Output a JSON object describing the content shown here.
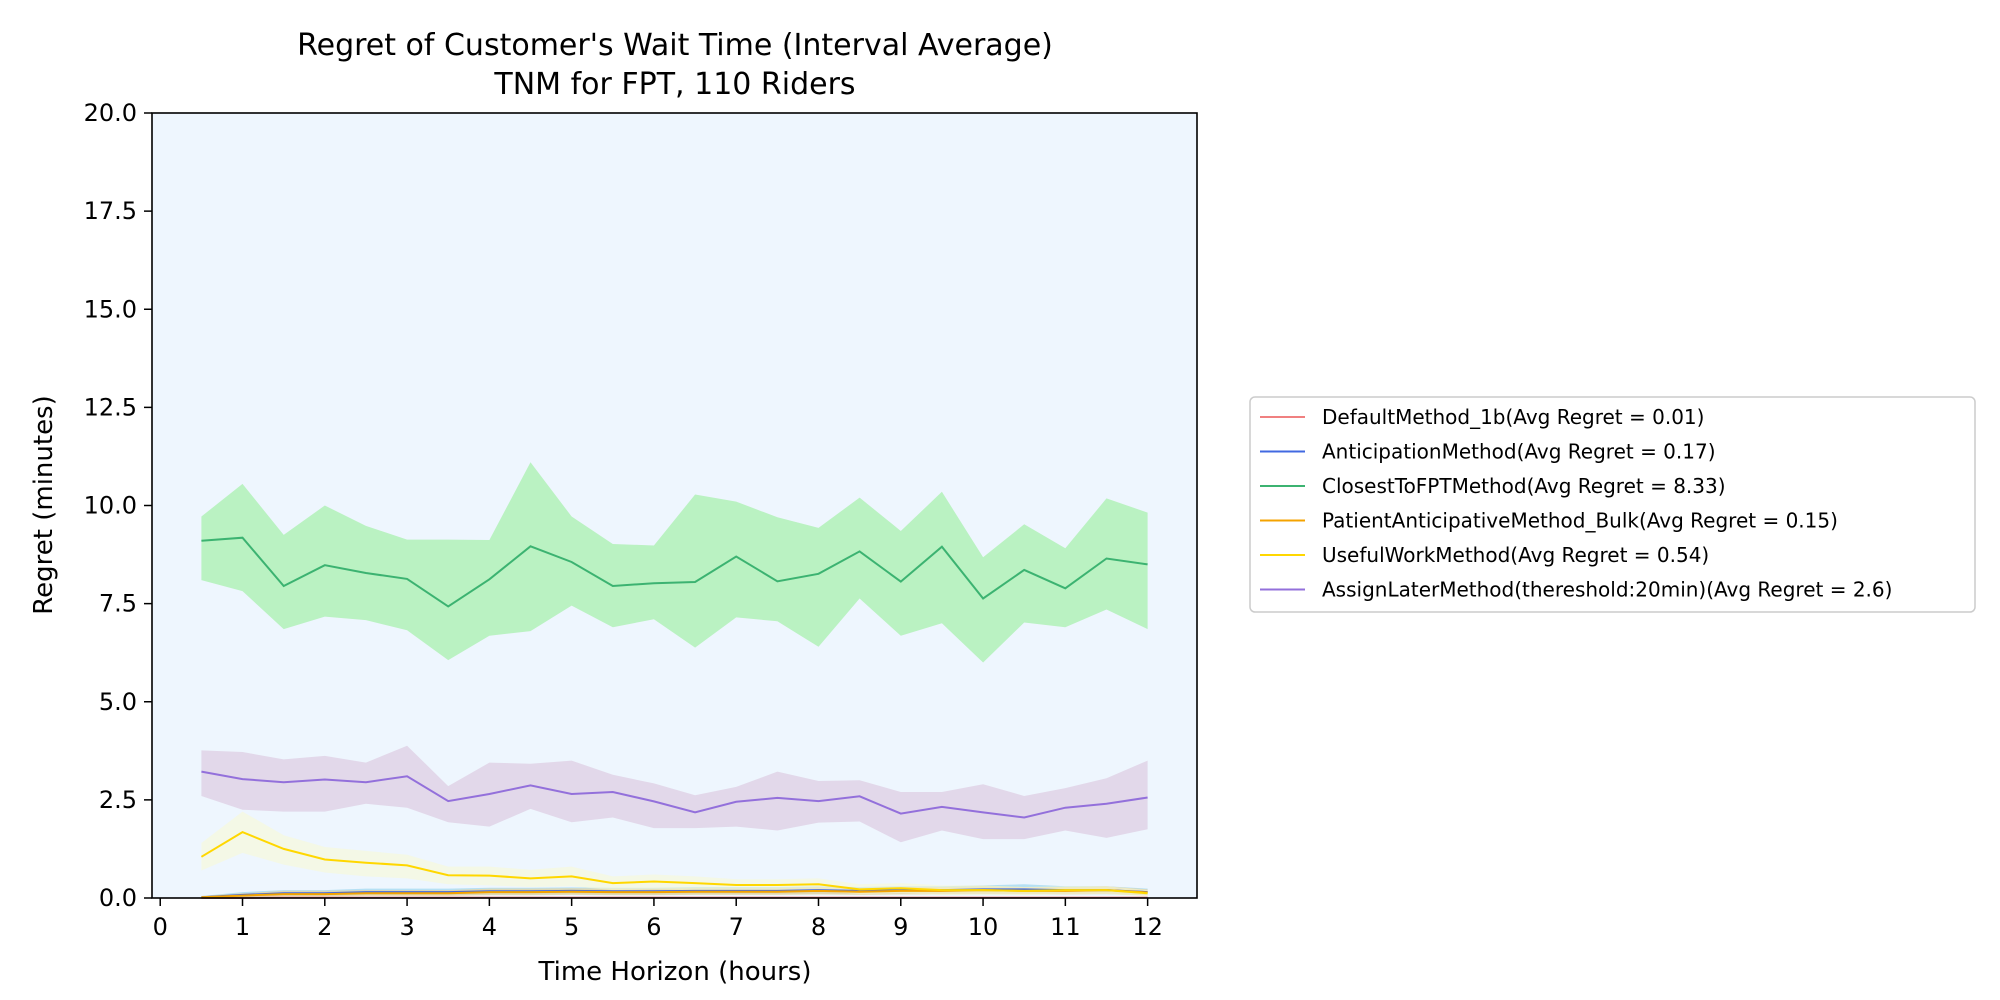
{
  "chart_data": {
    "type": "line",
    "title": "Regret of Customer's Wait Time (Interval Average)",
    "subtitle": "TNM for FPT, 110 Riders",
    "xlabel": "Time Horizon (hours)",
    "ylabel": "Regret (minutes)",
    "xlim": [
      -0.1,
      12.6
    ],
    "ylim": [
      0,
      20
    ],
    "xticks": [
      0,
      1,
      2,
      3,
      4,
      5,
      6,
      7,
      8,
      9,
      10,
      11,
      12
    ],
    "yticks": [
      "0.0",
      "2.5",
      "5.0",
      "7.5",
      "10.0",
      "12.5",
      "15.0",
      "17.5",
      "20.0"
    ],
    "plot_background": "#eef6fe",
    "grid": false,
    "legend_position": "outside-right",
    "x": [
      0.5,
      1,
      1.5,
      2,
      2.5,
      3,
      3.5,
      4,
      4.5,
      5,
      5.5,
      6,
      6.5,
      7,
      7.5,
      8,
      8.5,
      9,
      9.5,
      10,
      10.5,
      11,
      11.5,
      12
    ],
    "series": [
      {
        "name": "DefaultMethod_1b(Avg Regret = 0.01)",
        "color": "#f08080",
        "band_color": "#f4b6b6",
        "values": [
          0.0,
          0.0,
          0.01,
          0.01,
          0.01,
          0.01,
          0.01,
          0.01,
          0.01,
          0.01,
          0.01,
          0.01,
          0.01,
          0.01,
          0.01,
          0.01,
          0.01,
          0.01,
          0.01,
          0.01,
          0.01,
          0.01,
          0.01,
          0.01
        ],
        "lower": [
          0.0,
          0.0,
          0.0,
          0.0,
          0.0,
          0.0,
          0.0,
          0.0,
          0.0,
          0.0,
          0.0,
          0.0,
          0.0,
          0.0,
          0.0,
          0.0,
          0.0,
          0.0,
          0.0,
          0.0,
          0.0,
          0.0,
          0.0,
          0.0
        ],
        "upper": [
          0.02,
          0.03,
          0.03,
          0.03,
          0.03,
          0.03,
          0.03,
          0.03,
          0.03,
          0.03,
          0.03,
          0.03,
          0.03,
          0.03,
          0.03,
          0.03,
          0.03,
          0.03,
          0.03,
          0.03,
          0.03,
          0.03,
          0.03,
          0.03
        ]
      },
      {
        "name": "AnticipationMethod(Avg Regret = 0.17)",
        "color": "#4169e1",
        "band_color": "#87ceeb",
        "values": [
          0.02,
          0.08,
          0.12,
          0.12,
          0.15,
          0.15,
          0.15,
          0.17,
          0.17,
          0.18,
          0.17,
          0.17,
          0.18,
          0.18,
          0.18,
          0.2,
          0.18,
          0.2,
          0.2,
          0.22,
          0.22,
          0.2,
          0.2,
          0.15
        ],
        "lower": [
          0.0,
          0.02,
          0.05,
          0.05,
          0.07,
          0.07,
          0.07,
          0.08,
          0.08,
          0.09,
          0.08,
          0.08,
          0.09,
          0.09,
          0.09,
          0.1,
          0.09,
          0.1,
          0.1,
          0.1,
          0.1,
          0.1,
          0.1,
          0.07
        ],
        "upper": [
          0.05,
          0.15,
          0.2,
          0.2,
          0.24,
          0.24,
          0.24,
          0.26,
          0.26,
          0.27,
          0.26,
          0.26,
          0.28,
          0.28,
          0.28,
          0.3,
          0.28,
          0.3,
          0.3,
          0.32,
          0.35,
          0.3,
          0.3,
          0.24
        ]
      },
      {
        "name": "ClosestToFPTMethod(Avg Regret = 8.33)",
        "color": "#3cb371",
        "band_color": "#90ee90",
        "values": [
          9.1,
          9.18,
          7.95,
          8.48,
          8.28,
          8.13,
          7.43,
          8.12,
          8.96,
          8.56,
          7.95,
          8.02,
          8.05,
          8.7,
          8.07,
          8.26,
          8.83,
          8.06,
          8.95,
          7.63,
          8.36,
          7.89,
          8.65,
          8.5
        ],
        "lower": [
          8.1,
          7.82,
          6.85,
          7.17,
          7.08,
          6.82,
          6.06,
          6.68,
          6.8,
          7.45,
          6.9,
          7.1,
          6.38,
          7.15,
          7.05,
          6.4,
          7.63,
          6.68,
          7.0,
          6.0,
          7.02,
          6.9,
          7.35,
          6.85
        ],
        "upper": [
          9.72,
          10.55,
          9.25,
          10.0,
          9.48,
          9.13,
          9.13,
          9.12,
          11.1,
          9.72,
          9.02,
          8.98,
          10.28,
          10.1,
          9.7,
          9.43,
          10.2,
          9.35,
          10.35,
          8.68,
          9.52,
          8.91,
          10.18,
          9.82
        ]
      },
      {
        "name": "PatientAnticipativeMethod_Bulk(Avg Regret = 0.15)",
        "color": "#f4a300",
        "band_color": "#ffd27f",
        "values": [
          0.02,
          0.06,
          0.1,
          0.1,
          0.12,
          0.12,
          0.12,
          0.15,
          0.15,
          0.16,
          0.15,
          0.15,
          0.16,
          0.16,
          0.16,
          0.18,
          0.16,
          0.18,
          0.18,
          0.2,
          0.18,
          0.18,
          0.2,
          0.14
        ],
        "lower": [
          0.0,
          0.02,
          0.04,
          0.04,
          0.05,
          0.05,
          0.05,
          0.07,
          0.07,
          0.08,
          0.07,
          0.07,
          0.08,
          0.08,
          0.08,
          0.09,
          0.08,
          0.09,
          0.09,
          0.1,
          0.09,
          0.09,
          0.1,
          0.06
        ],
        "upper": [
          0.05,
          0.12,
          0.18,
          0.18,
          0.2,
          0.2,
          0.2,
          0.24,
          0.24,
          0.25,
          0.24,
          0.24,
          0.25,
          0.25,
          0.25,
          0.28,
          0.25,
          0.28,
          0.28,
          0.3,
          0.28,
          0.28,
          0.3,
          0.22
        ]
      },
      {
        "name": "UsefulWorkMethod(Avg Regret = 0.54)",
        "color": "#ffd700",
        "band_color": "#fafad2",
        "values": [
          1.05,
          1.68,
          1.25,
          0.98,
          0.9,
          0.83,
          0.58,
          0.57,
          0.5,
          0.55,
          0.38,
          0.42,
          0.38,
          0.33,
          0.33,
          0.35,
          0.22,
          0.25,
          0.2,
          0.2,
          0.18,
          0.2,
          0.2,
          0.12
        ],
        "lower": [
          0.7,
          1.15,
          0.85,
          0.65,
          0.55,
          0.5,
          0.35,
          0.32,
          0.28,
          0.3,
          0.2,
          0.22,
          0.2,
          0.15,
          0.15,
          0.18,
          0.1,
          0.12,
          0.08,
          0.08,
          0.08,
          0.1,
          0.1,
          0.05
        ],
        "upper": [
          1.4,
          2.2,
          1.6,
          1.3,
          1.2,
          1.1,
          0.8,
          0.8,
          0.72,
          0.8,
          0.55,
          0.6,
          0.55,
          0.48,
          0.48,
          0.5,
          0.35,
          0.38,
          0.32,
          0.32,
          0.28,
          0.3,
          0.3,
          0.2
        ]
      },
      {
        "name": "AssignLaterMethod(thereshold:20min)(Avg Regret = 2.6)",
        "color": "#9370db",
        "band_color": "#d8bfd8",
        "values": [
          3.22,
          3.03,
          2.95,
          3.02,
          2.95,
          3.1,
          2.47,
          2.65,
          2.87,
          2.65,
          2.7,
          2.46,
          2.18,
          2.45,
          2.55,
          2.47,
          2.59,
          2.15,
          2.32,
          2.18,
          2.05,
          2.3,
          2.4,
          2.56
        ],
        "lower": [
          2.6,
          2.25,
          2.2,
          2.2,
          2.4,
          2.3,
          1.93,
          1.82,
          2.27,
          1.93,
          2.05,
          1.78,
          1.78,
          1.82,
          1.72,
          1.92,
          1.95,
          1.42,
          1.72,
          1.5,
          1.5,
          1.72,
          1.53,
          1.75
        ],
        "upper": [
          3.76,
          3.72,
          3.53,
          3.62,
          3.45,
          3.88,
          2.85,
          3.45,
          3.42,
          3.5,
          3.14,
          2.92,
          2.62,
          2.83,
          3.22,
          2.98,
          3.0,
          2.7,
          2.7,
          2.9,
          2.6,
          2.8,
          3.05,
          3.5
        ]
      }
    ]
  }
}
